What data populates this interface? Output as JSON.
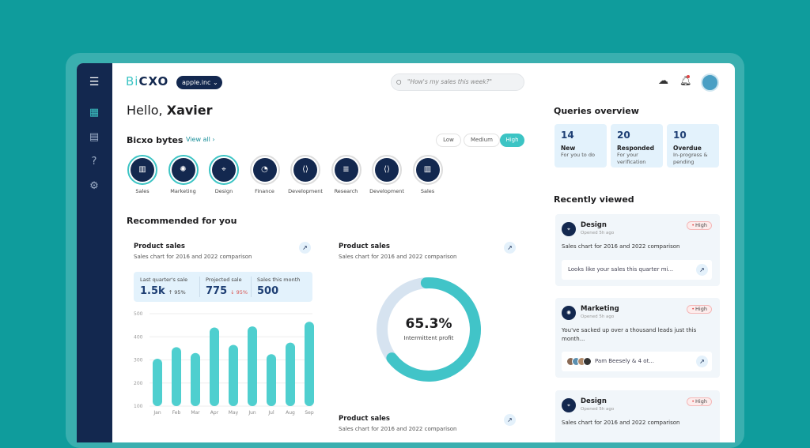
{
  "colors": {
    "accent": "#3cc4c4",
    "navy": "#13284f",
    "background": "#0f9c9c"
  },
  "header": {
    "logo": "BiCXO",
    "org": "apple.inc",
    "search_placeholder": "\"How's my sales this week?\"",
    "icons": [
      "cloud-alert-icon",
      "bell-icon",
      "avatar"
    ]
  },
  "sidebar": {
    "items": [
      "menu-icon",
      "dashboard-icon",
      "reports-icon",
      "help-icon",
      "settings-icon"
    ]
  },
  "greeting": {
    "prefix": "Hello, ",
    "name": "Xavier"
  },
  "bytes": {
    "title": "Bicxo bytes",
    "view_all": "View all ›",
    "filters": [
      "Low",
      "Medium",
      "High"
    ],
    "active_filter": "High",
    "items": [
      {
        "label": "Sales",
        "icon": "bar-chart-icon",
        "g": "▥"
      },
      {
        "label": "Marketing",
        "icon": "megaphone-icon",
        "g": "✺"
      },
      {
        "label": "Design",
        "icon": "design-icon",
        "g": "⌖"
      },
      {
        "label": "Finance",
        "icon": "pie-chart-icon",
        "g": "◔"
      },
      {
        "label": "Development",
        "icon": "code-icon",
        "g": "⟨⟩"
      },
      {
        "label": "Research",
        "icon": "document-icon",
        "g": "≣"
      },
      {
        "label": "Development",
        "icon": "code-icon",
        "g": "⟨⟩"
      },
      {
        "label": "Sales",
        "icon": "bar-chart-icon",
        "g": "▥"
      }
    ]
  },
  "recommended": {
    "title": "Recommended for you",
    "card1": {
      "title": "Product sales",
      "subtitle": "Sales chart for 2016 and 2022 comparison",
      "stats": [
        {
          "label": "Last quarter's sale",
          "value": "1.5k",
          "change": "↑ 95%"
        },
        {
          "label": "Projected sale",
          "value": "775",
          "change": "↓ 95%"
        },
        {
          "label": "Sales this month",
          "value": "500",
          "change": ""
        }
      ]
    },
    "card2": {
      "title": "Product sales",
      "subtitle": "Sales chart for 2016 and 2022 comparison",
      "center_value": "65.3%",
      "center_label": "Intermittent profit"
    },
    "card3": {
      "title": "Product sales",
      "subtitle": "Sales chart for 2016 and 2022 comparison"
    }
  },
  "chart_data": [
    {
      "type": "bar",
      "categories": [
        "Jan",
        "Feb",
        "Mar",
        "Apr",
        "May",
        "Jun",
        "Jul",
        "Aug",
        "Sep"
      ],
      "values": [
        305,
        355,
        330,
        440,
        365,
        445,
        325,
        375,
        465
      ],
      "yticks": [
        "500",
        "400",
        "300",
        "200",
        "100"
      ],
      "ylim": [
        100,
        500
      ],
      "grid": true,
      "color": "#4fcfcf"
    },
    {
      "type": "pie",
      "subtype": "donut",
      "values": [
        65.3,
        34.7
      ],
      "colors": [
        "#41c4c8",
        "#d6e3f0"
      ]
    }
  ],
  "queries": {
    "title": "Queries overview",
    "items": [
      {
        "count": "14",
        "title": "New",
        "desc": "For you to do"
      },
      {
        "count": "20",
        "title": "Responded",
        "desc": "For your verification"
      },
      {
        "count": "10",
        "title": "Overdue",
        "desc": "In-progress & pending"
      }
    ]
  },
  "recent": {
    "title": "Recently viewed",
    "items": [
      {
        "title": "Design",
        "opened": "Opened 5h ago",
        "badge": "High",
        "desc": "Sales chart for 2016 and 2022 comparison",
        "box": "Looks like your sales this quarter mi..."
      },
      {
        "title": "Marketing",
        "opened": "Opened 5h ago",
        "badge": "High",
        "desc": "You've sacked up over a thousand leads just this month...",
        "box": "Pam Beesely & 4 ot..."
      },
      {
        "title": "Design",
        "opened": "Opened 5h ago",
        "badge": "High",
        "desc": "Sales chart for 2016 and 2022 comparison"
      }
    ]
  }
}
